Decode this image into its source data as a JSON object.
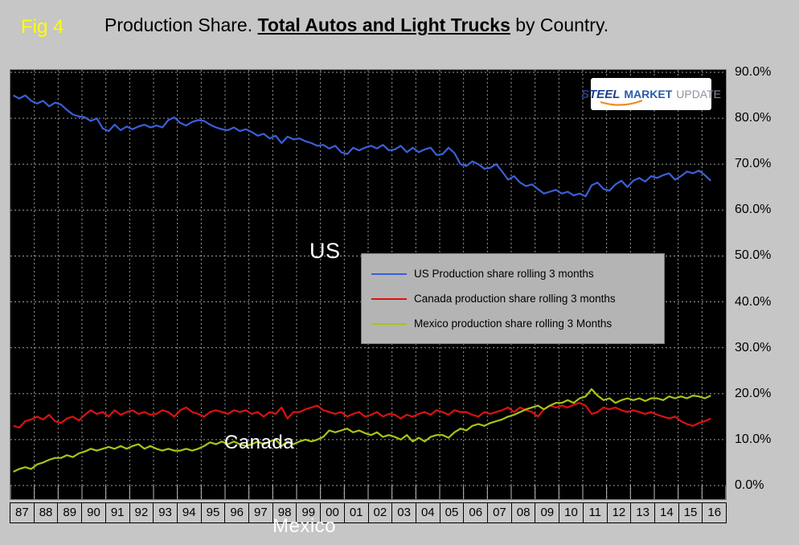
{
  "header": {
    "fig_label": "Fig 4",
    "title_prefix": "Production Share. ",
    "title_emphasis": "Total Autos and Light Trucks",
    "title_suffix": " by Country."
  },
  "logo": {
    "word1": "STEEL",
    "word2": "MARKET",
    "word3": "UPDATE"
  },
  "annotations": {
    "us": "US",
    "canada": "Canada",
    "mexico": "Mexico"
  },
  "legend": [
    {
      "label": "US Production share rolling 3 months",
      "color": "#3a5fd9"
    },
    {
      "label": "Canada production share rolling 3 months",
      "color": "#dd1111"
    },
    {
      "label": "Mexico production share rolling 3 Months",
      "color": "#a9c414"
    }
  ],
  "chart_data": {
    "type": "line",
    "title": "Production Share. Total Autos and Light Trucks by Country.",
    "plot_bg": "#000000",
    "grid": "dashed",
    "grid_color": "#9b9b9b",
    "legend_position": "center",
    "ylim": [
      0,
      90
    ],
    "y_ticks": [
      "90.0%",
      "80.0%",
      "70.0%",
      "60.0%",
      "50.0%",
      "40.0%",
      "30.0%",
      "20.0%",
      "10.0%",
      "0.0%"
    ],
    "x_categories": [
      "87",
      "88",
      "89",
      "90",
      "91",
      "92",
      "93",
      "94",
      "95",
      "96",
      "97",
      "98",
      "99",
      "00",
      "01",
      "02",
      "03",
      "04",
      "05",
      "06",
      "07",
      "08",
      "09",
      "10",
      "11",
      "12",
      "13",
      "14",
      "15",
      "16"
    ],
    "points_per_year": 4,
    "series": [
      {
        "name": "US Production share rolling 3 months",
        "color": "#3a5fd9",
        "values": [
          85.0,
          84.3,
          85.0,
          83.8,
          83.2,
          83.8,
          82.6,
          83.4,
          83.0,
          81.8,
          80.8,
          80.4,
          80.2,
          79.4,
          80.0,
          77.8,
          77.2,
          78.6,
          77.4,
          78.2,
          77.6,
          78.2,
          78.6,
          78.0,
          78.4,
          78.0,
          79.6,
          80.2,
          79.0,
          78.4,
          79.2,
          79.6,
          79.4,
          78.6,
          78.0,
          77.6,
          77.4,
          78.0,
          77.2,
          77.6,
          77.0,
          76.2,
          76.6,
          75.6,
          76.2,
          74.6,
          76.0,
          75.4,
          75.6,
          75.0,
          74.6,
          74.0,
          74.2,
          73.4,
          74.0,
          72.6,
          72.2,
          73.6,
          73.0,
          73.6,
          74.0,
          73.4,
          74.2,
          73.0,
          73.2,
          74.0,
          72.6,
          73.6,
          72.6,
          73.2,
          73.6,
          72.0,
          72.2,
          73.6,
          72.4,
          70.0,
          69.6,
          70.6,
          70.0,
          69.0,
          69.2,
          70.0,
          68.4,
          66.6,
          67.4,
          66.0,
          65.2,
          65.6,
          64.6,
          63.6,
          64.0,
          64.4,
          63.6,
          64.0,
          63.2,
          63.6,
          63.0,
          65.4,
          66.0,
          64.6,
          64.2,
          65.6,
          66.4,
          65.0,
          66.4,
          67.0,
          66.2,
          67.4,
          67.0,
          67.6,
          68.0,
          66.6,
          67.4,
          68.4,
          68.0,
          68.6,
          67.6,
          66.4
        ]
      },
      {
        "name": "Canada production share rolling 3 months",
        "color": "#dd1111",
        "values": [
          13.0,
          12.6,
          14.0,
          14.4,
          15.0,
          14.4,
          15.4,
          14.0,
          13.6,
          14.6,
          15.0,
          14.2,
          15.4,
          16.4,
          15.6,
          16.0,
          15.0,
          16.4,
          15.4,
          16.0,
          16.4,
          15.6,
          16.0,
          15.4,
          15.6,
          16.4,
          16.0,
          15.0,
          16.4,
          17.0,
          16.0,
          15.6,
          15.0,
          16.0,
          16.4,
          16.0,
          15.6,
          16.4,
          16.0,
          16.4,
          15.6,
          16.0,
          15.0,
          16.0,
          15.6,
          17.0,
          14.6,
          16.0,
          16.0,
          16.6,
          17.0,
          17.4,
          16.4,
          16.0,
          15.6,
          16.0,
          15.0,
          15.6,
          16.0,
          15.0,
          15.4,
          16.0,
          15.0,
          15.6,
          15.4,
          14.6,
          15.4,
          15.0,
          15.6,
          16.0,
          15.4,
          16.4,
          16.0,
          15.4,
          16.4,
          16.0,
          16.0,
          15.4,
          15.0,
          16.0,
          15.6,
          16.0,
          16.4,
          17.0,
          16.0,
          17.0,
          16.4,
          16.0,
          15.0,
          16.6,
          17.4,
          17.0,
          17.4,
          17.0,
          17.6,
          18.0,
          17.4,
          15.6,
          16.0,
          17.0,
          16.6,
          17.0,
          16.4,
          16.0,
          16.4,
          16.0,
          15.6,
          16.0,
          15.4,
          15.0,
          14.6,
          15.0,
          14.0,
          13.4,
          13.0,
          13.6,
          14.0,
          14.6
        ]
      },
      {
        "name": "Mexico production share rolling 3 Months",
        "color": "#a9c414",
        "values": [
          3.0,
          3.6,
          4.0,
          3.6,
          4.6,
          5.0,
          5.6,
          6.0,
          6.0,
          6.6,
          6.2,
          7.0,
          7.4,
          8.0,
          7.6,
          8.0,
          8.4,
          8.0,
          8.6,
          8.0,
          8.6,
          9.0,
          8.0,
          8.6,
          8.0,
          7.6,
          8.0,
          7.6,
          7.6,
          8.0,
          7.6,
          8.0,
          8.6,
          9.4,
          9.0,
          9.6,
          9.0,
          9.6,
          9.0,
          8.6,
          9.0,
          9.6,
          9.0,
          9.6,
          10.0,
          8.6,
          9.6,
          9.0,
          9.6,
          10.0,
          9.6,
          10.0,
          10.6,
          12.0,
          11.6,
          12.0,
          12.4,
          11.6,
          12.0,
          11.4,
          11.0,
          11.6,
          10.6,
          11.0,
          10.6,
          10.0,
          11.0,
          9.6,
          10.4,
          9.6,
          10.6,
          11.0,
          11.0,
          10.4,
          11.6,
          12.4,
          12.0,
          13.0,
          13.4,
          13.0,
          13.6,
          14.0,
          14.4,
          15.0,
          15.4,
          16.0,
          16.6,
          17.0,
          17.4,
          16.6,
          17.4,
          18.0,
          18.0,
          18.6,
          18.0,
          19.0,
          19.4,
          21.0,
          19.6,
          18.6,
          19.0,
          18.0,
          18.6,
          19.0,
          18.6,
          19.0,
          18.4,
          19.0,
          19.0,
          18.6,
          19.4,
          19.0,
          19.4,
          19.0,
          19.6,
          19.4,
          19.0,
          19.6
        ]
      }
    ]
  }
}
